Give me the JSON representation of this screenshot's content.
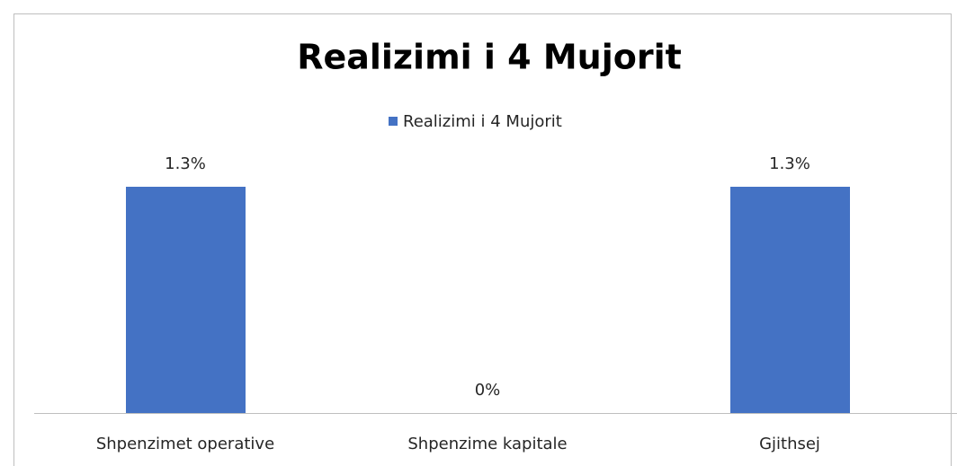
{
  "chart_data": {
    "type": "bar",
    "title": "Realizimi i 4 Mujorit",
    "categories": [
      "Shpenzimet operative",
      "Shpenzime kapitale",
      "Gjithsej"
    ],
    "series": [
      {
        "name": "Realizimi i 4 Mujorit",
        "color": "#4472c4",
        "values": [
          1.3,
          0,
          1.3
        ],
        "value_labels": [
          "1.3%",
          "0%",
          "1.3%"
        ]
      }
    ],
    "legend": "top"
  }
}
